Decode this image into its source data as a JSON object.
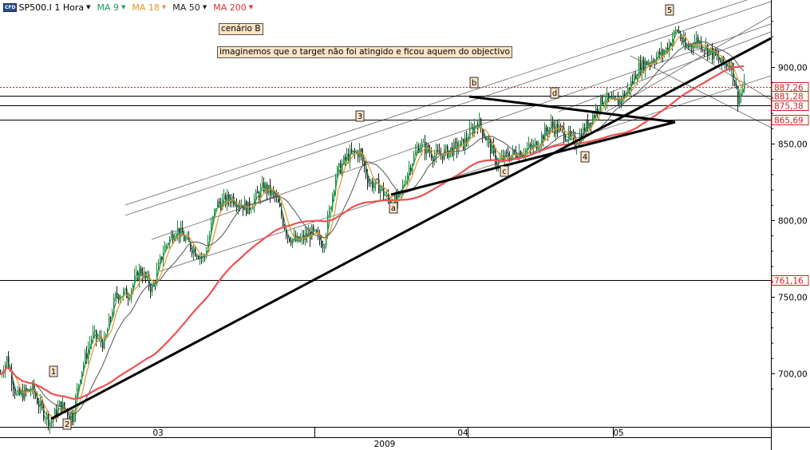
{
  "legend": {
    "instrument_badge": "CFD",
    "symbol": "SP500.I 1 Hora",
    "indicators": [
      {
        "label": "MA 9",
        "color": "#1e9c5a"
      },
      {
        "label": "MA 18",
        "color": "#e8962a"
      },
      {
        "label": "MA 50",
        "color": "#222222"
      },
      {
        "label": "MA 200",
        "color": "#e0302a"
      }
    ]
  },
  "annotations": {
    "scenario": "cenário B",
    "comment": "imaginemos que o target não foi atingido e ficou aquem do objectivo"
  },
  "chart_data": {
    "type": "line",
    "title": "",
    "ylim": [
      660,
      935
    ],
    "y_ticks": [
      {
        "value": 900,
        "label": "900,00"
      },
      {
        "value": 850,
        "label": "850,00"
      },
      {
        "value": 800,
        "label": "800,00"
      },
      {
        "value": 750,
        "label": "750,00"
      },
      {
        "value": 700,
        "label": "700,00"
      }
    ],
    "x_ticks": [
      "03",
      "04",
      "05"
    ],
    "x_year": "2009",
    "price_levels": [
      {
        "value": 887.26,
        "label": "887,26",
        "style": "dotted",
        "color": "#d02020"
      },
      {
        "value": 881.28,
        "label": "881,28",
        "style": "solid",
        "color": "#000000"
      },
      {
        "value": 875.38,
        "label": "875,38",
        "style": "solid",
        "color": "#000000"
      },
      {
        "value": 865.69,
        "label": "865,69",
        "style": "solid",
        "color": "#000000"
      },
      {
        "value": 761.16,
        "label": "761,16",
        "style": "solid",
        "color": "#000000"
      }
    ],
    "wave_labels": [
      "1",
      "2",
      "3",
      "4",
      "5",
      "a",
      "b",
      "c",
      "d"
    ],
    "series": [
      {
        "name": "MA 9",
        "color": "#1e9c5a"
      },
      {
        "name": "MA 18",
        "color": "#e8962a"
      },
      {
        "name": "MA 50",
        "color": "#555555"
      },
      {
        "name": "MA 200",
        "color": "#f05050"
      }
    ]
  }
}
